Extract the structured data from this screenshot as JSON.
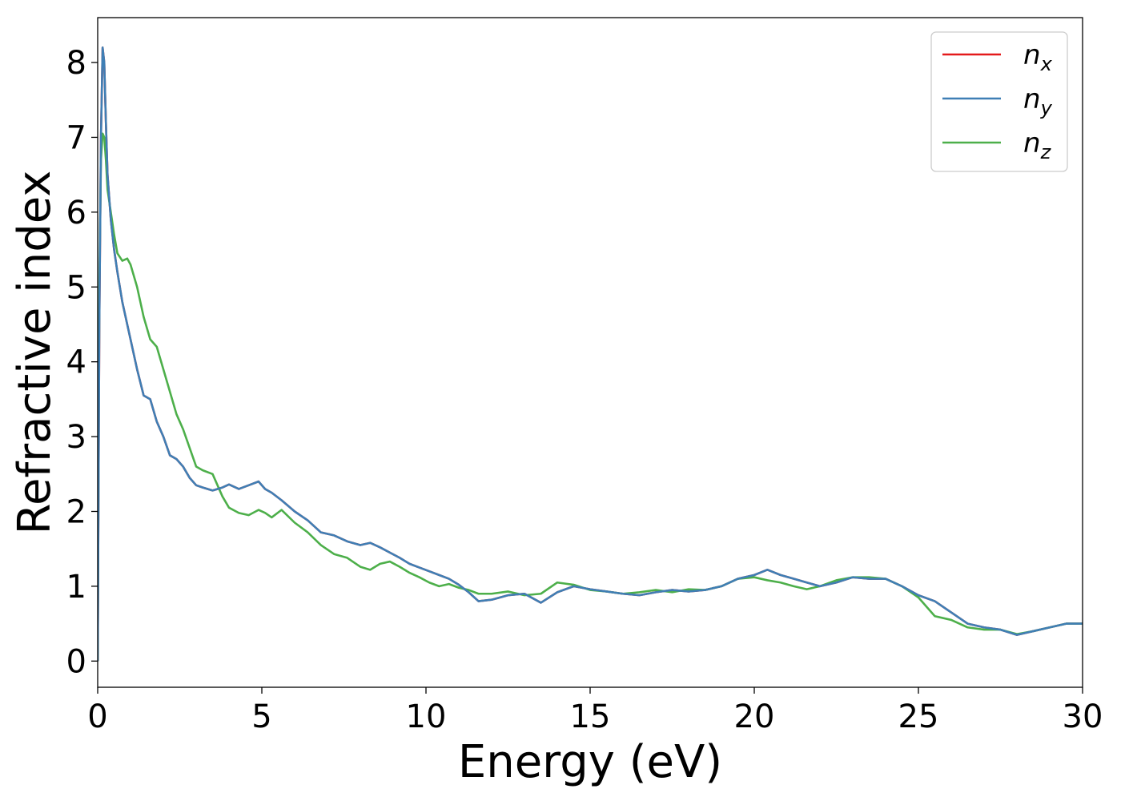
{
  "chart_data": {
    "type": "line",
    "xlabel": "Energy (eV)",
    "ylabel": "Refractive index",
    "xlim": [
      0,
      30
    ],
    "ylim": [
      -0.35,
      8.6
    ],
    "xticks": [
      0,
      5,
      10,
      15,
      20,
      25,
      30
    ],
    "yticks": [
      0,
      1,
      2,
      3,
      4,
      5,
      6,
      7,
      8
    ],
    "legend_position": "top-right",
    "grid": false,
    "series": [
      {
        "name": "n_x",
        "label_base": "n",
        "label_sub": "x",
        "color": "#e41a1c",
        "x": [
          0,
          0.05,
          0.1,
          0.15,
          0.2,
          0.25,
          0.3,
          0.4,
          0.5,
          0.6,
          0.75,
          0.9,
          1.0,
          1.2,
          1.4,
          1.6,
          1.8,
          2.0,
          2.2,
          2.4,
          2.6,
          2.8,
          3.0,
          3.2,
          3.5,
          3.8,
          4.0,
          4.3,
          4.6,
          4.9,
          5.1,
          5.3,
          5.6,
          6.0,
          6.4,
          6.8,
          7.2,
          7.6,
          8.0,
          8.3,
          8.6,
          8.9,
          9.2,
          9.5,
          9.8,
          10.1,
          10.4,
          10.7,
          11.0,
          11.3,
          11.6,
          12.0,
          12.5,
          13.0,
          13.5,
          14.0,
          14.5,
          15.0,
          15.5,
          16.0,
          16.5,
          17.0,
          17.5,
          18.0,
          18.5,
          19.0,
          19.5,
          20.0,
          20.4,
          20.8,
          21.2,
          21.6,
          22.0,
          22.5,
          23.0,
          23.5,
          24.0,
          24.5,
          25.0,
          25.5,
          26.0,
          26.5,
          27.0,
          27.5,
          28.0,
          28.5,
          29.0,
          29.5,
          30.0
        ],
        "y": [
          0.0,
          4.5,
          7.0,
          8.2,
          8.0,
          7.2,
          6.5,
          5.9,
          5.5,
          5.2,
          4.8,
          4.5,
          4.3,
          3.9,
          3.55,
          3.5,
          3.2,
          3.0,
          2.75,
          2.7,
          2.6,
          2.45,
          2.35,
          2.32,
          2.28,
          2.32,
          2.36,
          2.3,
          2.35,
          2.4,
          2.3,
          2.25,
          2.15,
          2.0,
          1.88,
          1.72,
          1.68,
          1.6,
          1.55,
          1.58,
          1.52,
          1.45,
          1.38,
          1.3,
          1.25,
          1.2,
          1.15,
          1.1,
          1.02,
          0.92,
          0.8,
          0.82,
          0.88,
          0.9,
          0.78,
          0.92,
          1.0,
          0.96,
          0.93,
          0.9,
          0.88,
          0.92,
          0.95,
          0.93,
          0.95,
          1.0,
          1.1,
          1.15,
          1.22,
          1.15,
          1.1,
          1.05,
          1.0,
          1.05,
          1.12,
          1.1,
          1.1,
          1.0,
          0.88,
          0.8,
          0.65,
          0.5,
          0.45,
          0.42,
          0.35,
          0.4,
          0.45,
          0.5,
          0.5
        ]
      },
      {
        "name": "n_y",
        "label_base": "n",
        "label_sub": "y",
        "color": "#3f7fb5",
        "x": [
          0,
          0.05,
          0.1,
          0.15,
          0.2,
          0.25,
          0.3,
          0.4,
          0.5,
          0.6,
          0.75,
          0.9,
          1.0,
          1.2,
          1.4,
          1.6,
          1.8,
          2.0,
          2.2,
          2.4,
          2.6,
          2.8,
          3.0,
          3.2,
          3.5,
          3.8,
          4.0,
          4.3,
          4.6,
          4.9,
          5.1,
          5.3,
          5.6,
          6.0,
          6.4,
          6.8,
          7.2,
          7.6,
          8.0,
          8.3,
          8.6,
          8.9,
          9.2,
          9.5,
          9.8,
          10.1,
          10.4,
          10.7,
          11.0,
          11.3,
          11.6,
          12.0,
          12.5,
          13.0,
          13.5,
          14.0,
          14.5,
          15.0,
          15.5,
          16.0,
          16.5,
          17.0,
          17.5,
          18.0,
          18.5,
          19.0,
          19.5,
          20.0,
          20.4,
          20.8,
          21.2,
          21.6,
          22.0,
          22.5,
          23.0,
          23.5,
          24.0,
          24.5,
          25.0,
          25.5,
          26.0,
          26.5,
          27.0,
          27.5,
          28.0,
          28.5,
          29.0,
          29.5,
          30.0
        ],
        "y": [
          0.0,
          4.5,
          7.0,
          8.2,
          8.0,
          7.2,
          6.5,
          5.9,
          5.5,
          5.2,
          4.8,
          4.5,
          4.3,
          3.9,
          3.55,
          3.5,
          3.2,
          3.0,
          2.75,
          2.7,
          2.6,
          2.45,
          2.35,
          2.32,
          2.28,
          2.32,
          2.36,
          2.3,
          2.35,
          2.4,
          2.3,
          2.25,
          2.15,
          2.0,
          1.88,
          1.72,
          1.68,
          1.6,
          1.55,
          1.58,
          1.52,
          1.45,
          1.38,
          1.3,
          1.25,
          1.2,
          1.15,
          1.1,
          1.02,
          0.92,
          0.8,
          0.82,
          0.88,
          0.9,
          0.78,
          0.92,
          1.0,
          0.96,
          0.93,
          0.9,
          0.88,
          0.92,
          0.95,
          0.93,
          0.95,
          1.0,
          1.1,
          1.15,
          1.22,
          1.15,
          1.1,
          1.05,
          1.0,
          1.05,
          1.12,
          1.1,
          1.1,
          1.0,
          0.88,
          0.8,
          0.65,
          0.5,
          0.45,
          0.42,
          0.35,
          0.4,
          0.45,
          0.5,
          0.5
        ]
      },
      {
        "name": "n_z",
        "label_base": "n",
        "label_sub": "z",
        "color": "#4daf4a",
        "x": [
          0,
          0.05,
          0.1,
          0.15,
          0.2,
          0.25,
          0.3,
          0.4,
          0.5,
          0.6,
          0.75,
          0.9,
          1.0,
          1.2,
          1.4,
          1.6,
          1.8,
          2.0,
          2.2,
          2.4,
          2.6,
          2.8,
          3.0,
          3.2,
          3.5,
          3.8,
          4.0,
          4.3,
          4.6,
          4.9,
          5.1,
          5.3,
          5.6,
          6.0,
          6.4,
          6.8,
          7.2,
          7.6,
          8.0,
          8.3,
          8.6,
          8.9,
          9.2,
          9.5,
          9.8,
          10.1,
          10.4,
          10.7,
          11.0,
          11.3,
          11.6,
          12.0,
          12.5,
          13.0,
          13.5,
          14.0,
          14.5,
          15.0,
          15.5,
          16.0,
          16.5,
          17.0,
          17.5,
          18.0,
          18.5,
          19.0,
          19.5,
          20.0,
          20.4,
          20.8,
          21.2,
          21.6,
          22.0,
          22.5,
          23.0,
          23.5,
          24.0,
          24.5,
          25.0,
          25.5,
          26.0,
          26.5,
          27.0,
          27.5,
          28.0,
          28.5,
          29.0,
          29.5,
          30.0
        ],
        "y": [
          0.0,
          5.0,
          6.7,
          7.05,
          7.0,
          6.7,
          6.3,
          6.0,
          5.7,
          5.45,
          5.35,
          5.38,
          5.3,
          5.0,
          4.6,
          4.3,
          4.2,
          3.9,
          3.6,
          3.3,
          3.1,
          2.85,
          2.6,
          2.55,
          2.5,
          2.2,
          2.05,
          1.98,
          1.95,
          2.02,
          1.98,
          1.92,
          2.02,
          1.85,
          1.72,
          1.55,
          1.43,
          1.38,
          1.26,
          1.22,
          1.3,
          1.33,
          1.26,
          1.18,
          1.12,
          1.05,
          1.0,
          1.03,
          0.98,
          0.95,
          0.9,
          0.9,
          0.93,
          0.88,
          0.9,
          1.05,
          1.02,
          0.95,
          0.93,
          0.9,
          0.92,
          0.95,
          0.92,
          0.96,
          0.95,
          1.0,
          1.1,
          1.12,
          1.08,
          1.05,
          1.0,
          0.96,
          1.0,
          1.08,
          1.12,
          1.12,
          1.1,
          1.0,
          0.85,
          0.6,
          0.55,
          0.45,
          0.42,
          0.42,
          0.36,
          0.4,
          0.45,
          0.5,
          0.5
        ]
      }
    ]
  }
}
